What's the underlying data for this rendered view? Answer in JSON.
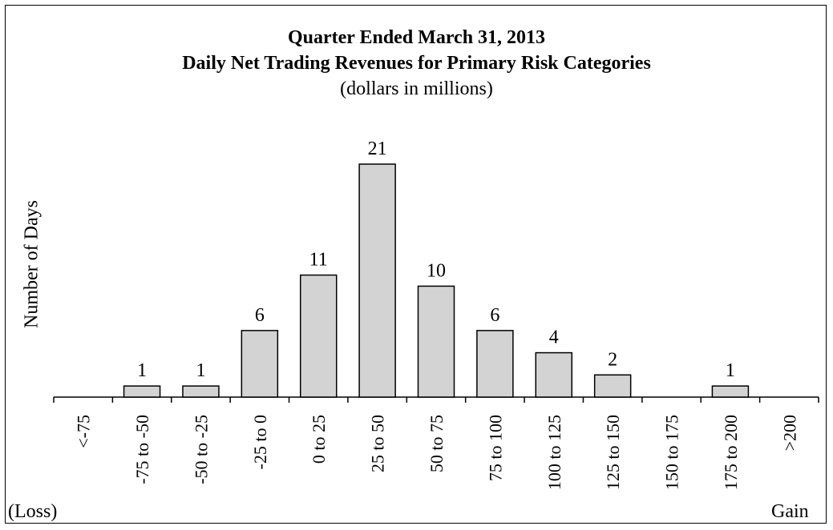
{
  "chart_data": {
    "type": "bar",
    "title": "Quarter Ended March 31, 2013",
    "subtitle": "Daily Net Trading Revenues for Primary Risk Categories",
    "units_note": "(dollars in millions)",
    "ylabel": "Number of Days",
    "x_left_note": "(Loss)",
    "x_right_note": "Gain",
    "categories": [
      "<-75",
      "-75 to -50",
      "-50 to -25",
      "-25 to 0",
      "0 to 25",
      "25 to 50",
      "50 to 75",
      "75 to 100",
      "100 to 125",
      "125 to 150",
      "150 to 175",
      "175 to 200",
      ">200"
    ],
    "values": [
      0,
      1,
      1,
      6,
      11,
      21,
      10,
      6,
      4,
      2,
      0,
      1,
      0
    ],
    "data_labels": [
      "",
      "1",
      "1",
      "6",
      "11",
      "21",
      "10",
      "6",
      "4",
      "2",
      "",
      "1",
      ""
    ],
    "ylim": [
      0,
      21
    ],
    "bar_color": "#d3d3d3",
    "grid": false,
    "legend": "none"
  }
}
